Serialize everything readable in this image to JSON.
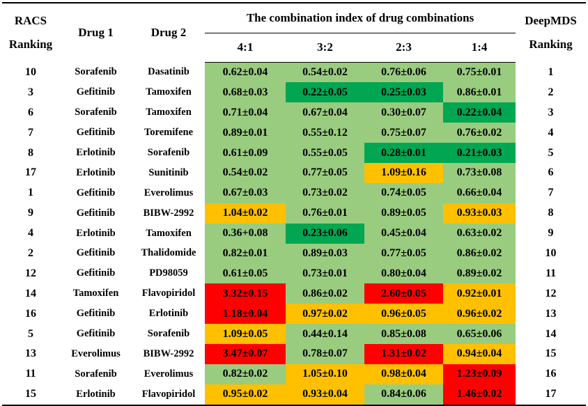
{
  "header": {
    "racs_line1": "RACS",
    "racs_line2": "Ranking",
    "drug1": "Drug 1",
    "drug2": "Drug 2",
    "combo_title": "The combination index of drug combinations",
    "ratios": [
      "4:1",
      "3:2",
      "2:3",
      "1:4"
    ],
    "deep_line1": "DeepMDS",
    "deep_line2": "Ranking"
  },
  "colors": {
    "green": "#99cc7f",
    "dark_green": "#00a651",
    "yellow": "#ffc000",
    "red": "#ff0000"
  },
  "rows": [
    {
      "racs": "10",
      "drug1": "Sorafenib",
      "drug2": "Dasatinib",
      "ci": [
        "0.62±0.04",
        "0.54±0.02",
        "0.76±0.06",
        "0.75±0.01"
      ],
      "levels": [
        "g",
        "g",
        "g",
        "g"
      ],
      "deep": "1"
    },
    {
      "racs": "3",
      "drug1": "Gefitinib",
      "drug2": "Tamoxifen",
      "ci": [
        "0.68±0.03",
        "0.22±0.05",
        "0.25±0.03",
        "0.86±0.01"
      ],
      "levels": [
        "g",
        "dg",
        "dg",
        "g"
      ],
      "deep": "2"
    },
    {
      "racs": "6",
      "drug1": "Sorafenib",
      "drug2": "Tamoxifen",
      "ci": [
        "0.71±0.04",
        "0.67±0.04",
        "0.30±0.07",
        "0.22±0.04"
      ],
      "levels": [
        "g",
        "g",
        "g",
        "dg"
      ],
      "deep": "3"
    },
    {
      "racs": "7",
      "drug1": "Gefitinib",
      "drug2": "Toremifene",
      "ci": [
        "0.89±0.01",
        "0.55±0.12",
        "0.75±0.07",
        "0.76±0.02"
      ],
      "levels": [
        "g",
        "g",
        "g",
        "g"
      ],
      "deep": "4"
    },
    {
      "racs": "8",
      "drug1": "Erlotinib",
      "drug2": "Sorafenib",
      "ci": [
        "0.61±0.09",
        "0.55±0.05",
        "0.28±0.01",
        "0.21±0.03"
      ],
      "levels": [
        "g",
        "g",
        "dg",
        "dg"
      ],
      "deep": "5"
    },
    {
      "racs": "17",
      "drug1": "Erlotinib",
      "drug2": "Sunitinib",
      "ci": [
        "0.54±0.02",
        "0.77±0.05",
        "1.09±0.16",
        "0.73±0.08"
      ],
      "levels": [
        "g",
        "g",
        "y",
        "g"
      ],
      "deep": "6"
    },
    {
      "racs": "1",
      "drug1": "Gefitinib",
      "drug2": "Everolimus",
      "ci": [
        "0.67±0.03",
        "0.73±0.02",
        "0.74±0.05",
        "0.66±0.04"
      ],
      "levels": [
        "g",
        "g",
        "g",
        "g"
      ],
      "deep": "7"
    },
    {
      "racs": "9",
      "drug1": "Gefitinib",
      "drug2": "BIBW-2992",
      "ci": [
        "1.04±0.02",
        "0.76±0.01",
        "0.89±0.05",
        "0.93±0.03"
      ],
      "levels": [
        "y",
        "g",
        "g",
        "y"
      ],
      "deep": "8"
    },
    {
      "racs": "4",
      "drug1": "Erlotinib",
      "drug2": "Tamoxifen",
      "ci": [
        "0.36+0.08",
        "0.23±0.06",
        "0.45±0.04",
        "0.63±0.02"
      ],
      "levels": [
        "g",
        "dg",
        "g",
        "g"
      ],
      "deep": "9"
    },
    {
      "racs": "2",
      "drug1": "Gefitinib",
      "drug2": "Thalidomide",
      "ci": [
        "0.82±0.01",
        "0.89±0.03",
        "0.77±0.05",
        "0.86±0.02"
      ],
      "levels": [
        "g",
        "g",
        "g",
        "g"
      ],
      "deep": "10"
    },
    {
      "racs": "12",
      "drug1": "Gefitinib",
      "drug2": "PD98059",
      "ci": [
        "0.61±0.05",
        "0.73±0.01",
        "0.80±0.04",
        "0.89±0.02"
      ],
      "levels": [
        "g",
        "g",
        "g",
        "g"
      ],
      "deep": "11"
    },
    {
      "racs": "14",
      "drug1": "Tamoxifen",
      "drug2": "Flavopiridol",
      "ci": [
        "3.32±0.15",
        "0.86±0.02",
        "2.60±0.05",
        "0.92±0.01"
      ],
      "levels": [
        "r",
        "g",
        "r",
        "y"
      ],
      "deep": "12"
    },
    {
      "racs": "16",
      "drug1": "Gefitinib",
      "drug2": "Erlotinib",
      "ci": [
        "1.18±0.04",
        "0.97±0.02",
        "0.96±0.05",
        "0.96±0.02"
      ],
      "levels": [
        "r",
        "y",
        "y",
        "y"
      ],
      "deep": "13"
    },
    {
      "racs": "5",
      "drug1": "Gefitinib",
      "drug2": "Sorafenib",
      "ci": [
        "1.09±0.05",
        "0.44±0.14",
        "0.85±0.08",
        "0.65±0.06"
      ],
      "levels": [
        "y",
        "g",
        "g",
        "g"
      ],
      "deep": "14"
    },
    {
      "racs": "13",
      "drug1": "Everolimus",
      "drug2": "BIBW-2992",
      "ci": [
        "3.47±0.07",
        "0.78±0.07",
        "1.31±0.02",
        "0.94±0.04"
      ],
      "levels": [
        "r",
        "g",
        "r",
        "y"
      ],
      "deep": "15"
    },
    {
      "racs": "11",
      "drug1": "Sorafenib",
      "drug2": "Everolimus",
      "ci": [
        "0.82±0.02",
        "1.05±0.10",
        "0.98±0.04",
        "1.23±0.09"
      ],
      "levels": [
        "g",
        "y",
        "y",
        "r"
      ],
      "deep": "16"
    },
    {
      "racs": "15",
      "drug1": "Erlotinib",
      "drug2": "Flavopiridol",
      "ci": [
        "0.95±0.02",
        "0.93±0.04",
        "0.84±0.06",
        "1.46±0.02"
      ],
      "levels": [
        "y",
        "y",
        "g",
        "r"
      ],
      "deep": "17"
    }
  ]
}
